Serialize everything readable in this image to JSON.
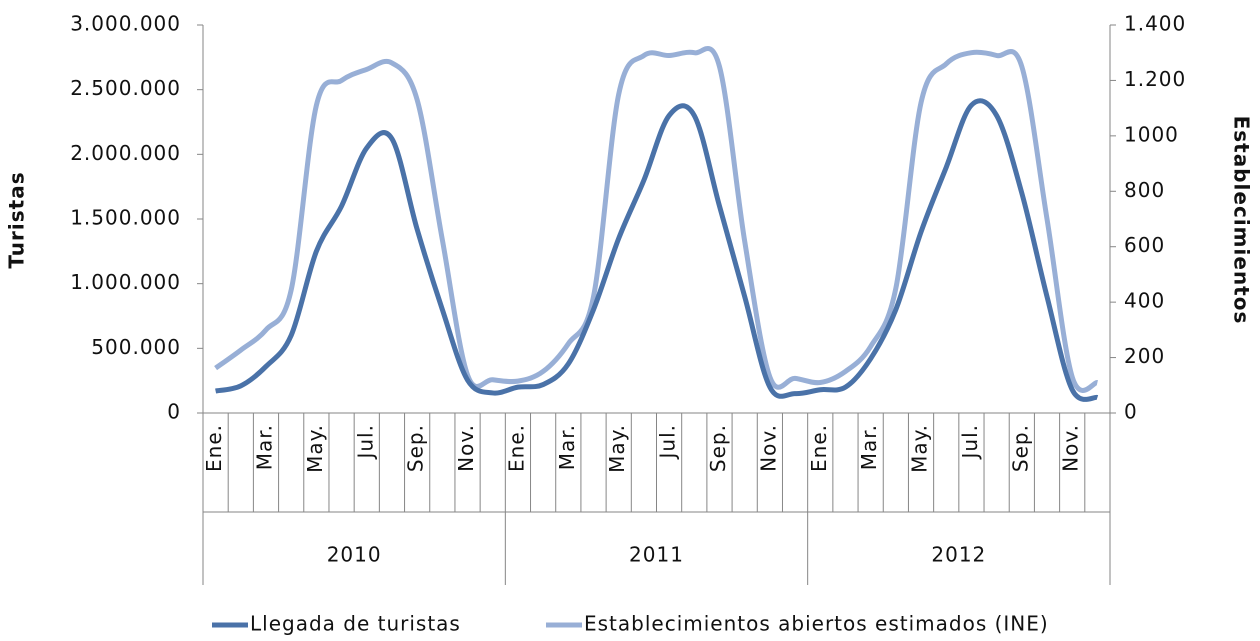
{
  "chart_data": {
    "type": "line",
    "categories": [
      "Ene.",
      null,
      "Mar.",
      null,
      "May.",
      null,
      "Jul.",
      null,
      "Sep.",
      null,
      "Nov.",
      null,
      "Ene.",
      null,
      "Mar.",
      null,
      "May.",
      null,
      "Jul.",
      null,
      "Sep.",
      null,
      "Nov.",
      null,
      "Ene.",
      null,
      "Mar.",
      null,
      "May.",
      null,
      "Jul.",
      null,
      "Sep.",
      null,
      "Nov.",
      null
    ],
    "category_groups": [
      "2010",
      "2011",
      "2012"
    ],
    "y_label": "Turistas",
    "y2_label": "Establecimientos",
    "ylim": [
      0,
      3000000
    ],
    "yticks": [
      0,
      {
        "value": 500000,
        "label": "500.000"
      },
      {
        "value": 1000000,
        "label": "1.000.000"
      },
      {
        "value": 1500000,
        "label": "1.500.000"
      },
      {
        "value": 2000000,
        "label": "2.000.000"
      },
      {
        "value": 2500000,
        "label": "2.500.000"
      },
      {
        "value": 3000000,
        "label": "3.000.000"
      }
    ],
    "y2lim": [
      0,
      1400
    ],
    "y2ticks": [
      0,
      200,
      400,
      600,
      800,
      1000,
      {
        "value": 1200,
        "label": "1.200"
      },
      {
        "value": 1400,
        "label": "1.400"
      }
    ],
    "legend": "bottom",
    "series": [
      {
        "name": "Llegada de turistas",
        "color": "#4a72a8",
        "values": [
          170000,
          210000,
          360000,
          600000,
          1250000,
          1600000,
          2050000,
          2120000,
          1420000,
          800000,
          255000,
          155000,
          200000,
          220000,
          380000,
          800000,
          1350000,
          1800000,
          2300000,
          2300000,
          1600000,
          900000,
          200000,
          150000,
          180000,
          200000,
          420000,
          800000,
          1400000,
          1900000,
          2380000,
          2300000,
          1700000,
          900000,
          180000,
          120000
        ]
      },
      {
        "name": "Establecimientos abiertos estimados (INE)",
        "color": "#98afd6",
        "axis": "y2",
        "values": [
          162,
          227,
          300,
          444,
          1110,
          1200,
          1240,
          1263,
          1130,
          625,
          137,
          120,
          115,
          150,
          250,
          420,
          1150,
          1290,
          1290,
          1300,
          1250,
          620,
          130,
          125,
          110,
          150,
          240,
          450,
          1120,
          1260,
          1300,
          1290,
          1250,
          700,
          130,
          110
        ]
      }
    ]
  }
}
